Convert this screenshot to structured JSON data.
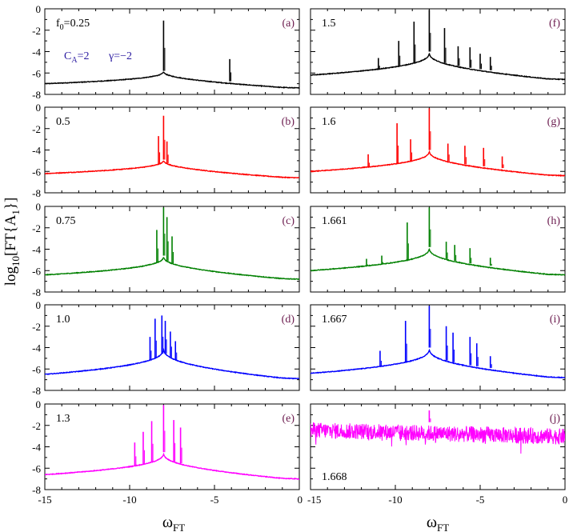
{
  "chart_data": {
    "type": "line",
    "ylabel": "log10[FT{A1}]",
    "xlabel": "ωFT",
    "xlim": [
      -15,
      0
    ],
    "ylim": [
      -8,
      0
    ],
    "x_ticks": [
      "-15",
      "-10",
      "-5",
      "0"
    ],
    "y_ticks": [
      "0",
      "-2",
      "-4",
      "-6",
      "-8"
    ],
    "annotation": {
      "ca": "CA=2",
      "gamma": "γ=−2"
    },
    "panels": [
      {
        "tag": "(a)",
        "param": "f0=0.25",
        "color": "#000000",
        "base_center": -7.6,
        "base_edge": -7.0,
        "peak_height": -5.8,
        "peaks": [
          {
            "x": -8.0,
            "y": -1.1
          },
          {
            "x": -4.1,
            "y": -4.7
          }
        ]
      },
      {
        "tag": "(b)",
        "param": "0.5",
        "color": "#ff0000",
        "base_center": -6.6,
        "base_edge": -6.2,
        "peak_height": -4.9,
        "peaks": [
          {
            "x": -8.0,
            "y": -0.8
          },
          {
            "x": -8.3,
            "y": -2.7
          },
          {
            "x": -7.8,
            "y": -3.2
          }
        ]
      },
      {
        "tag": "(c)",
        "param": "0.75",
        "color": "#008000",
        "base_center": -6.9,
        "base_edge": -6.4,
        "peak_height": -4.6,
        "peaks": [
          {
            "x": -8.0,
            "y": -0.1
          },
          {
            "x": -7.8,
            "y": -1.0
          },
          {
            "x": -8.4,
            "y": -2.2
          },
          {
            "x": -7.5,
            "y": -2.8
          }
        ]
      },
      {
        "tag": "(d)",
        "param": "1.0",
        "color": "#0000ff",
        "base_center": -7.0,
        "base_edge": -6.5,
        "peak_height": -4.0,
        "peaks": [
          {
            "x": -8.1,
            "y": -1.0
          },
          {
            "x": -8.5,
            "y": -1.3
          },
          {
            "x": -7.9,
            "y": -1.5
          },
          {
            "x": -7.6,
            "y": -2.5
          },
          {
            "x": -8.8,
            "y": -3.0
          },
          {
            "x": -7.3,
            "y": -3.4
          }
        ]
      },
      {
        "tag": "(e)",
        "param": "1.3",
        "color": "#ff00ff",
        "base_center": -6.9,
        "base_edge": -6.6,
        "peak_height": -4.5,
        "peaks": [
          {
            "x": -8.0,
            "y": -0.1
          },
          {
            "x": -8.7,
            "y": -1.6
          },
          {
            "x": -7.4,
            "y": -1.5
          },
          {
            "x": -9.2,
            "y": -2.6
          },
          {
            "x": -7.0,
            "y": -2.2
          },
          {
            "x": -9.7,
            "y": -3.6
          }
        ]
      },
      {
        "tag": "(f)",
        "param": "1.5",
        "color": "#000000",
        "base_center": -6.4,
        "base_edge": -6.2,
        "peak_height": -4.0,
        "peaks": [
          {
            "x": -8.0,
            "y": -0.1
          },
          {
            "x": -8.9,
            "y": -1.2
          },
          {
            "x": -7.1,
            "y": -1.8
          },
          {
            "x": -9.8,
            "y": -3.0
          },
          {
            "x": -6.3,
            "y": -3.5
          },
          {
            "x": -5.6,
            "y": -3.6
          },
          {
            "x": -5.0,
            "y": -4.2
          },
          {
            "x": -4.4,
            "y": -4.5
          },
          {
            "x": -11.0,
            "y": -4.6
          }
        ]
      },
      {
        "tag": "(g)",
        "param": "1.6",
        "color": "#ff0000",
        "base_center": -6.3,
        "base_edge": -6.0,
        "peak_height": -4.0,
        "peaks": [
          {
            "x": -8.0,
            "y": -0.1
          },
          {
            "x": -9.9,
            "y": -1.5
          },
          {
            "x": -9.1,
            "y": -3.0
          },
          {
            "x": -6.9,
            "y": -3.4
          },
          {
            "x": -5.9,
            "y": -3.6
          },
          {
            "x": -4.8,
            "y": -3.8
          },
          {
            "x": -3.7,
            "y": -4.6
          },
          {
            "x": -11.6,
            "y": -4.4
          }
        ]
      },
      {
        "tag": "(h)",
        "param": "1.661",
        "color": "#008000",
        "base_center": -6.3,
        "base_edge": -6.0,
        "peak_height": -3.8,
        "peaks": [
          {
            "x": -8.0,
            "y": -0.1
          },
          {
            "x": -9.3,
            "y": -1.5
          },
          {
            "x": -7.0,
            "y": -3.3
          },
          {
            "x": -6.5,
            "y": -3.6
          },
          {
            "x": -5.6,
            "y": -3.9
          },
          {
            "x": -10.8,
            "y": -4.6
          },
          {
            "x": -4.4,
            "y": -4.8
          },
          {
            "x": -11.7,
            "y": -4.9
          }
        ]
      },
      {
        "tag": "(i)",
        "param": "1.667",
        "color": "#0000ff",
        "base_center": -6.6,
        "base_edge": -6.4,
        "peak_height": -4.0,
        "peaks": [
          {
            "x": -8.0,
            "y": -0.1
          },
          {
            "x": -9.4,
            "y": -1.5
          },
          {
            "x": -7.0,
            "y": -2.0
          },
          {
            "x": -6.6,
            "y": -2.6
          },
          {
            "x": -5.6,
            "y": -3.0
          },
          {
            "x": -5.2,
            "y": -3.6
          },
          {
            "x": -10.9,
            "y": -4.3
          },
          {
            "x": -4.4,
            "y": -4.8
          }
        ]
      },
      {
        "tag": "(j)",
        "param": "1.668",
        "color": "#ff00ff",
        "noise_top": -1.7,
        "noise_bottom": -3.2,
        "peaks": [
          {
            "x": -8.0,
            "y": -0.6
          }
        ]
      }
    ]
  }
}
